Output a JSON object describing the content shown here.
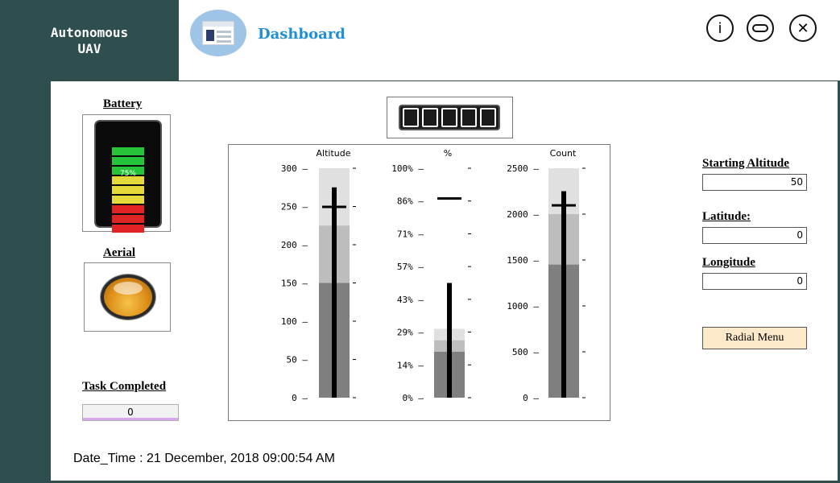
{
  "brand": {
    "line1": "Autonomous",
    "line2": "UAV"
  },
  "header": {
    "title": "Dashboard",
    "icon": "dashboard-window-icon"
  },
  "window_controls": [
    {
      "name": "info",
      "icon": "info-icon",
      "glyph": "i"
    },
    {
      "name": "minimize",
      "icon": "minimize-icon"
    },
    {
      "name": "close",
      "icon": "close-icon",
      "glyph": "✕"
    }
  ],
  "battery": {
    "label": "Battery",
    "level_text": "75%",
    "level_percent": 75,
    "cell_colors": [
      "#27c43a",
      "#27c43a",
      "#27c43a",
      "#e5d83a",
      "#e5d83a",
      "#e5d83a",
      "#e02424",
      "#e02424",
      "#e02424"
    ]
  },
  "aerial": {
    "label": "Aerial",
    "indicator_color": "#f0a830"
  },
  "task": {
    "label": "Task Completed",
    "value": "0"
  },
  "counter": {
    "digits": "00000"
  },
  "fields": {
    "starting_altitude": {
      "label": "Starting Altitude",
      "value": "50"
    },
    "latitude": {
      "label": "Latitude:",
      "value": "0"
    },
    "longitude": {
      "label": "Longitude",
      "value": "0"
    }
  },
  "radial_menu": {
    "label": "Radial Menu"
  },
  "datetime": "Date_Time : 21 December, 2018 09:00:54 AM",
  "chart_data": {
    "type": "bar",
    "gauges": [
      {
        "title": "Altitude",
        "ticks": [
          "300",
          "250",
          "200",
          "150",
          "100",
          "50",
          "0"
        ],
        "min": 0,
        "max": 300,
        "ranges": [
          150,
          225,
          300
        ],
        "value": 275,
        "target": 250
      },
      {
        "title": "%",
        "ticks": [
          "100%",
          "86%",
          "71%",
          "57%",
          "43%",
          "29%",
          "14%",
          "0%"
        ],
        "min": 0,
        "max": 100,
        "ranges": [
          20,
          25,
          30
        ],
        "value": 50,
        "target": 87
      },
      {
        "title": "Count",
        "ticks": [
          "2500",
          "2000",
          "1500",
          "1000",
          "500",
          "0"
        ],
        "min": 0,
        "max": 2500,
        "ranges": [
          1450,
          2000,
          2500
        ],
        "value": 2250,
        "target": 2100
      }
    ],
    "range_colors": [
      "#7f7f7f",
      "#bdbdbd",
      "#e0e0e0"
    ]
  }
}
